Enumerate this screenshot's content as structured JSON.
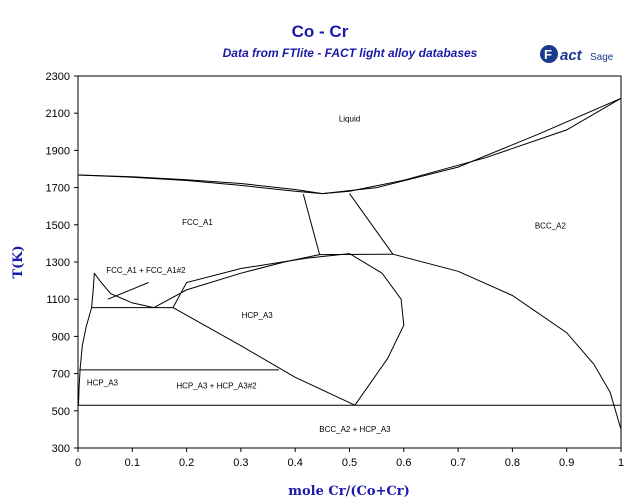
{
  "header": {
    "title": "Co - Cr",
    "subtitle": "Data from FTlite - FACT light alloy databases",
    "logo_text": "FactSage"
  },
  "chart_data": {
    "type": "line",
    "title": "Co - Cr",
    "subtitle": "Data from FTlite - FACT light alloy databases",
    "xlabel": "mole Cr/(Co+Cr)",
    "ylabel": "T(K)",
    "xlim": [
      0,
      1
    ],
    "ylim": [
      300,
      2300
    ],
    "x_ticks": [
      "0",
      "0.1",
      "0.2",
      "0.3",
      "0.4",
      "0.5",
      "0.6",
      "0.7",
      "0.8",
      "0.9",
      "1"
    ],
    "y_ticks": [
      "300",
      "500",
      "700",
      "900",
      "1100",
      "1300",
      "1500",
      "1700",
      "1900",
      "2100",
      "2300"
    ],
    "grid": false,
    "phase_labels": [
      {
        "text": "Liquid",
        "x": 0.5,
        "y": 2055
      },
      {
        "text": "FCC_A1",
        "x": 0.22,
        "y": 1500
      },
      {
        "text": "BCC_A2",
        "x": 0.87,
        "y": 1480
      },
      {
        "text": "FCC_A1 + FCC_A1#2",
        "x": 0.125,
        "y": 1240
      },
      {
        "text": "HCP_A3",
        "x": 0.33,
        "y": 1000
      },
      {
        "text": "HCP_A3",
        "x": 0.045,
        "y": 635
      },
      {
        "text": "HCP_A3 + HCP_A3#2",
        "x": 0.255,
        "y": 620
      },
      {
        "text": "BCC_A2 + HCP_A3",
        "x": 0.51,
        "y": 385
      }
    ],
    "series": [
      {
        "points": [
          [
            0,
            1768
          ],
          [
            0.1,
            1758
          ],
          [
            0.2,
            1742
          ],
          [
            0.3,
            1722
          ],
          [
            0.4,
            1690
          ],
          [
            0.45,
            1668
          ]
        ]
      },
      {
        "points": [
          [
            0,
            1768
          ],
          [
            0.1,
            1756
          ],
          [
            0.2,
            1738
          ],
          [
            0.3,
            1712
          ],
          [
            0.4,
            1680
          ],
          [
            0.45,
            1668
          ]
        ]
      },
      {
        "points": [
          [
            0.45,
            1668
          ],
          [
            0.55,
            1700
          ],
          [
            0.7,
            1810
          ],
          [
            0.85,
            1990
          ],
          [
            1,
            2180
          ]
        ]
      },
      {
        "points": [
          [
            0.45,
            1668
          ],
          [
            0.5,
            1680
          ],
          [
            0.6,
            1740
          ],
          [
            0.75,
            1860
          ],
          [
            0.9,
            2010
          ],
          [
            1,
            2180
          ]
        ]
      },
      {
        "points": [
          [
            0.415,
            1665
          ],
          [
            0.445,
            1340
          ]
        ]
      },
      {
        "points": [
          [
            0.5,
            1668
          ],
          [
            0.58,
            1342
          ]
        ]
      },
      {
        "points": [
          [
            0.445,
            1340
          ],
          [
            0.58,
            1342
          ]
        ]
      },
      {
        "points": [
          [
            0.58,
            1342
          ],
          [
            0.7,
            1250
          ],
          [
            0.8,
            1120
          ],
          [
            0.9,
            920
          ],
          [
            0.95,
            750
          ],
          [
            0.98,
            600
          ],
          [
            1,
            400
          ]
        ]
      },
      {
        "points": [
          [
            0.445,
            1340
          ],
          [
            0.38,
            1300
          ],
          [
            0.3,
            1240
          ],
          [
            0.2,
            1150
          ],
          [
            0.14,
            1055
          ]
        ]
      },
      {
        "points": [
          [
            0.5,
            1345
          ],
          [
            0.42,
            1320
          ],
          [
            0.3,
            1265
          ],
          [
            0.2,
            1190
          ],
          [
            0.175,
            1055
          ]
        ]
      },
      {
        "points": [
          [
            0.5,
            1345
          ],
          [
            0.56,
            1240
          ],
          [
            0.595,
            1100
          ],
          [
            0.6,
            960
          ],
          [
            0.57,
            780
          ],
          [
            0.51,
            530
          ]
        ]
      },
      {
        "points": [
          [
            0.175,
            1055
          ],
          [
            0.3,
            850
          ],
          [
            0.4,
            680
          ],
          [
            0.51,
            530
          ]
        ]
      },
      {
        "points": [
          [
            0.03,
            1240
          ],
          [
            0.04,
            1200
          ],
          [
            0.06,
            1130
          ],
          [
            0.1,
            1080
          ],
          [
            0.14,
            1055
          ]
        ]
      },
      {
        "points": [
          [
            0.03,
            1240
          ],
          [
            0.028,
            1150
          ],
          [
            0.025,
            1055
          ]
        ]
      },
      {
        "points": [
          [
            0.025,
            1055
          ],
          [
            0.175,
            1055
          ]
        ]
      },
      {
        "points": [
          [
            0.025,
            1055
          ],
          [
            0.015,
            950
          ],
          [
            0.008,
            850
          ],
          [
            0.004,
            730
          ],
          [
            0.002,
            630
          ],
          [
            0.001,
            530
          ]
        ]
      },
      {
        "points": [
          [
            0.002,
            720
          ],
          [
            0.37,
            720
          ]
        ]
      },
      {
        "points": [
          [
            0,
            530
          ],
          [
            1,
            530
          ]
        ]
      },
      {
        "points": [
          [
            0.055,
            1100
          ],
          [
            0.13,
            1190
          ]
        ]
      }
    ]
  }
}
